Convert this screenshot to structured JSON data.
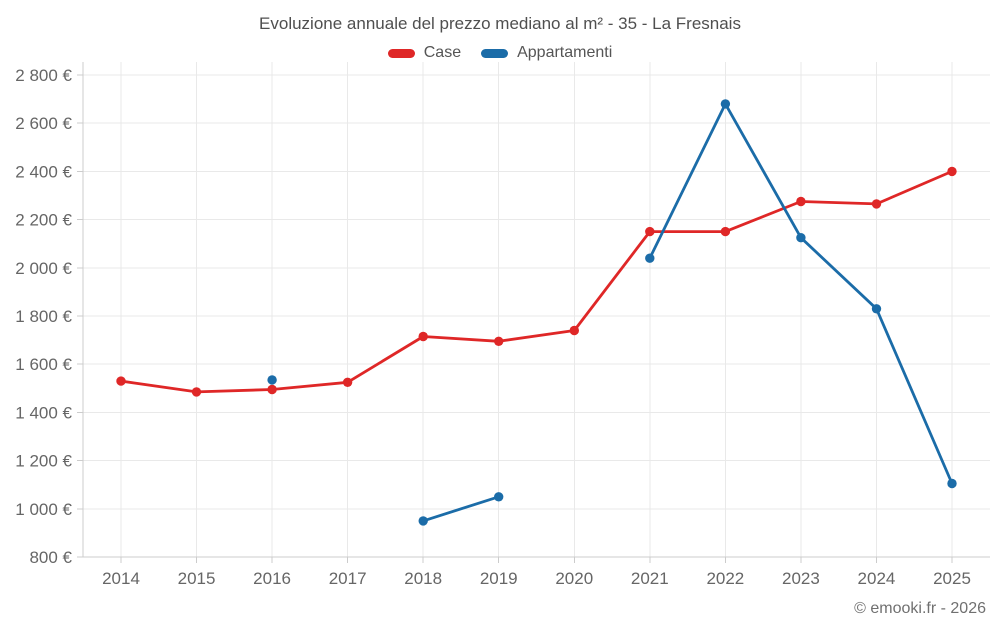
{
  "chart_data": {
    "type": "line",
    "title": "Evoluzione annuale del prezzo mediano al m² - 35 - La Fresnais",
    "categories": [
      "2014",
      "2015",
      "2016",
      "2017",
      "2018",
      "2019",
      "2020",
      "2021",
      "2022",
      "2023",
      "2024",
      "2025"
    ],
    "series": [
      {
        "name": "Case",
        "color": "#df2727",
        "values": [
          1530,
          1485,
          1495,
          1525,
          1715,
          1695,
          1740,
          2150,
          2150,
          2275,
          2265,
          2400
        ]
      },
      {
        "name": "Appartamenti",
        "color": "#1b6ca8",
        "values": [
          null,
          null,
          1535,
          null,
          950,
          1050,
          null,
          2040,
          2680,
          2125,
          1830,
          1105
        ]
      }
    ],
    "ylim": [
      800,
      2800
    ],
    "y_ticks": [
      800,
      1000,
      1200,
      1400,
      1600,
      1800,
      2000,
      2200,
      2400,
      2600,
      2800
    ],
    "y_tick_labels": [
      "800 €",
      "1 000 €",
      "1 200 €",
      "1 400 €",
      "1 600 €",
      "1 800 €",
      "2 000 €",
      "2 200 €",
      "2 400 €",
      "2 600 €",
      "2 800 €"
    ],
    "grid": true,
    "legend_position": "top",
    "attribution": "© emooki.fr - 2026",
    "colors": {
      "grid": "#e9e9e9",
      "axis": "#cccccc",
      "tick_text": "#666666",
      "title_text": "#4f4f4f"
    }
  }
}
